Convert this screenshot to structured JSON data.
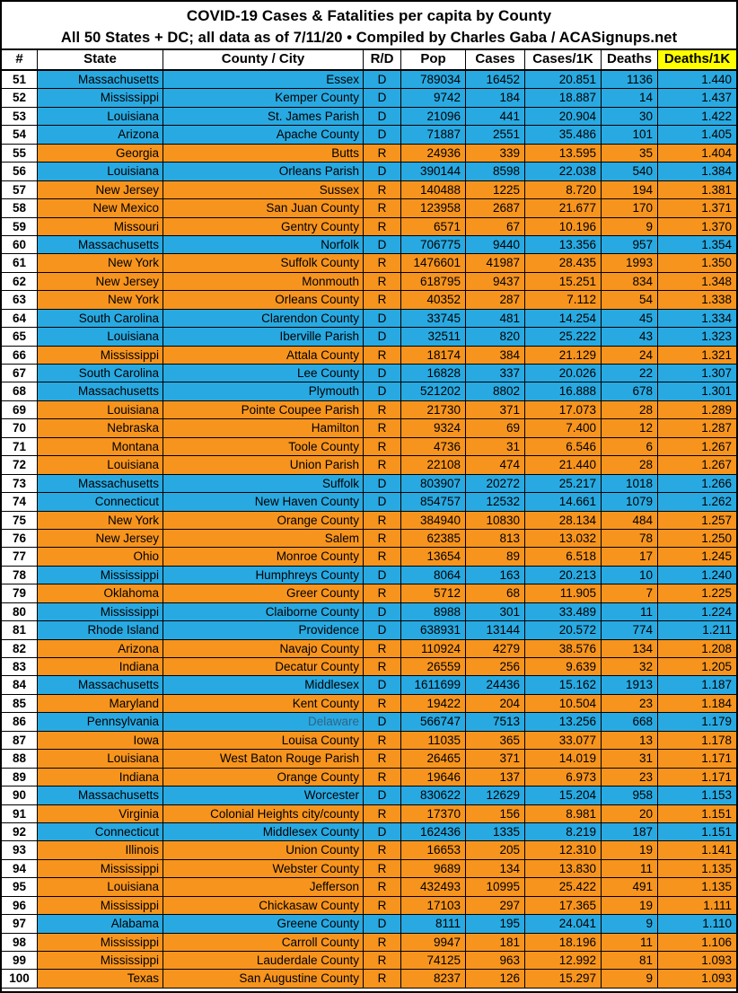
{
  "title": {
    "line1": "COVID-19 Cases & Fatalities per capita by County",
    "line2": "All 50 States + DC; all data as of 7/11/20  • Compiled by Charles Gaba / ACASignups.net"
  },
  "colors": {
    "dem_row": "#29a9e1",
    "rep_row": "#f7941e",
    "deaths_per_1k_highlight": "#ffff00",
    "border": "#000000"
  },
  "muted_cells": [
    {
      "row": "86",
      "column": "county",
      "color": "#2f6586"
    }
  ],
  "chart_data": {
    "type": "table",
    "title": "COVID-19 Cases & Fatalities per capita by County",
    "subtitle": "All 50 States + DC; all data as of 7/11/20 • Compiled by Charles Gaba / ACASignups.net",
    "columns": [
      "#",
      "State",
      "County / City",
      "R/D",
      "Pop",
      "Cases",
      "Cases/1K",
      "Deaths",
      "Deaths/1K"
    ],
    "rows": [
      [
        "51",
        "Massachusetts",
        "Essex",
        "D",
        "789034",
        "16452",
        "20.851",
        "1136",
        "1.440"
      ],
      [
        "52",
        "Mississippi",
        "Kemper County",
        "D",
        "9742",
        "184",
        "18.887",
        "14",
        "1.437"
      ],
      [
        "53",
        "Louisiana",
        "St. James Parish",
        "D",
        "21096",
        "441",
        "20.904",
        "30",
        "1.422"
      ],
      [
        "54",
        "Arizona",
        "Apache County",
        "D",
        "71887",
        "2551",
        "35.486",
        "101",
        "1.405"
      ],
      [
        "55",
        "Georgia",
        "Butts",
        "R",
        "24936",
        "339",
        "13.595",
        "35",
        "1.404"
      ],
      [
        "56",
        "Louisiana",
        "Orleans Parish",
        "D",
        "390144",
        "8598",
        "22.038",
        "540",
        "1.384"
      ],
      [
        "57",
        "New Jersey",
        "Sussex",
        "R",
        "140488",
        "1225",
        "8.720",
        "194",
        "1.381"
      ],
      [
        "58",
        "New Mexico",
        "San Juan County",
        "R",
        "123958",
        "2687",
        "21.677",
        "170",
        "1.371"
      ],
      [
        "59",
        "Missouri",
        "Gentry County",
        "R",
        "6571",
        "67",
        "10.196",
        "9",
        "1.370"
      ],
      [
        "60",
        "Massachusetts",
        "Norfolk",
        "D",
        "706775",
        "9440",
        "13.356",
        "957",
        "1.354"
      ],
      [
        "61",
        "New York",
        "Suffolk County",
        "R",
        "1476601",
        "41987",
        "28.435",
        "1993",
        "1.350"
      ],
      [
        "62",
        "New Jersey",
        "Monmouth",
        "R",
        "618795",
        "9437",
        "15.251",
        "834",
        "1.348"
      ],
      [
        "63",
        "New York",
        "Orleans County",
        "R",
        "40352",
        "287",
        "7.112",
        "54",
        "1.338"
      ],
      [
        "64",
        "South Carolina",
        "Clarendon County",
        "D",
        "33745",
        "481",
        "14.254",
        "45",
        "1.334"
      ],
      [
        "65",
        "Louisiana",
        "Iberville Parish",
        "D",
        "32511",
        "820",
        "25.222",
        "43",
        "1.323"
      ],
      [
        "66",
        "Mississippi",
        "Attala County",
        "R",
        "18174",
        "384",
        "21.129",
        "24",
        "1.321"
      ],
      [
        "67",
        "South Carolina",
        "Lee County",
        "D",
        "16828",
        "337",
        "20.026",
        "22",
        "1.307"
      ],
      [
        "68",
        "Massachusetts",
        "Plymouth",
        "D",
        "521202",
        "8802",
        "16.888",
        "678",
        "1.301"
      ],
      [
        "69",
        "Louisiana",
        "Pointe Coupee Parish",
        "R",
        "21730",
        "371",
        "17.073",
        "28",
        "1.289"
      ],
      [
        "70",
        "Nebraska",
        "Hamilton",
        "R",
        "9324",
        "69",
        "7.400",
        "12",
        "1.287"
      ],
      [
        "71",
        "Montana",
        "Toole County",
        "R",
        "4736",
        "31",
        "6.546",
        "6",
        "1.267"
      ],
      [
        "72",
        "Louisiana",
        "Union Parish",
        "R",
        "22108",
        "474",
        "21.440",
        "28",
        "1.267"
      ],
      [
        "73",
        "Massachusetts",
        "Suffolk",
        "D",
        "803907",
        "20272",
        "25.217",
        "1018",
        "1.266"
      ],
      [
        "74",
        "Connecticut",
        "New Haven County",
        "D",
        "854757",
        "12532",
        "14.661",
        "1079",
        "1.262"
      ],
      [
        "75",
        "New York",
        "Orange County",
        "R",
        "384940",
        "10830",
        "28.134",
        "484",
        "1.257"
      ],
      [
        "76",
        "New Jersey",
        "Salem",
        "R",
        "62385",
        "813",
        "13.032",
        "78",
        "1.250"
      ],
      [
        "77",
        "Ohio",
        "Monroe County",
        "R",
        "13654",
        "89",
        "6.518",
        "17",
        "1.245"
      ],
      [
        "78",
        "Mississippi",
        "Humphreys County",
        "D",
        "8064",
        "163",
        "20.213",
        "10",
        "1.240"
      ],
      [
        "79",
        "Oklahoma",
        "Greer County",
        "R",
        "5712",
        "68",
        "11.905",
        "7",
        "1.225"
      ],
      [
        "80",
        "Mississippi",
        "Claiborne County",
        "D",
        "8988",
        "301",
        "33.489",
        "11",
        "1.224"
      ],
      [
        "81",
        "Rhode Island",
        "Providence",
        "D",
        "638931",
        "13144",
        "20.572",
        "774",
        "1.211"
      ],
      [
        "82",
        "Arizona",
        "Navajo County",
        "R",
        "110924",
        "4279",
        "38.576",
        "134",
        "1.208"
      ],
      [
        "83",
        "Indiana",
        "Decatur County",
        "R",
        "26559",
        "256",
        "9.639",
        "32",
        "1.205"
      ],
      [
        "84",
        "Massachusetts",
        "Middlesex",
        "D",
        "1611699",
        "24436",
        "15.162",
        "1913",
        "1.187"
      ],
      [
        "85",
        "Maryland",
        "Kent County",
        "R",
        "19422",
        "204",
        "10.504",
        "23",
        "1.184"
      ],
      [
        "86",
        "Pennsylvania",
        "Delaware",
        "D",
        "566747",
        "7513",
        "13.256",
        "668",
        "1.179"
      ],
      [
        "87",
        "Iowa",
        "Louisa County",
        "R",
        "11035",
        "365",
        "33.077",
        "13",
        "1.178"
      ],
      [
        "88",
        "Louisiana",
        "West Baton Rouge Parish",
        "R",
        "26465",
        "371",
        "14.019",
        "31",
        "1.171"
      ],
      [
        "89",
        "Indiana",
        "Orange County",
        "R",
        "19646",
        "137",
        "6.973",
        "23",
        "1.171"
      ],
      [
        "90",
        "Massachusetts",
        "Worcester",
        "D",
        "830622",
        "12629",
        "15.204",
        "958",
        "1.153"
      ],
      [
        "91",
        "Virginia",
        "Colonial Heights city/county",
        "R",
        "17370",
        "156",
        "8.981",
        "20",
        "1.151"
      ],
      [
        "92",
        "Connecticut",
        "Middlesex County",
        "D",
        "162436",
        "1335",
        "8.219",
        "187",
        "1.151"
      ],
      [
        "93",
        "Illinois",
        "Union County",
        "R",
        "16653",
        "205",
        "12.310",
        "19",
        "1.141"
      ],
      [
        "94",
        "Mississippi",
        "Webster County",
        "R",
        "9689",
        "134",
        "13.830",
        "11",
        "1.135"
      ],
      [
        "95",
        "Louisiana",
        "Jefferson",
        "R",
        "432493",
        "10995",
        "25.422",
        "491",
        "1.135"
      ],
      [
        "96",
        "Mississippi",
        "Chickasaw County",
        "R",
        "17103",
        "297",
        "17.365",
        "19",
        "1.111"
      ],
      [
        "97",
        "Alabama",
        "Greene County",
        "D",
        "8111",
        "195",
        "24.041",
        "9",
        "1.110"
      ],
      [
        "98",
        "Mississippi",
        "Carroll County",
        "R",
        "9947",
        "181",
        "18.196",
        "11",
        "1.106"
      ],
      [
        "99",
        "Mississippi",
        "Lauderdale County",
        "R",
        "74125",
        "963",
        "12.992",
        "81",
        "1.093"
      ],
      [
        "100",
        "Texas",
        "San Augustine County",
        "R",
        "8237",
        "126",
        "15.297",
        "9",
        "1.093"
      ]
    ]
  }
}
